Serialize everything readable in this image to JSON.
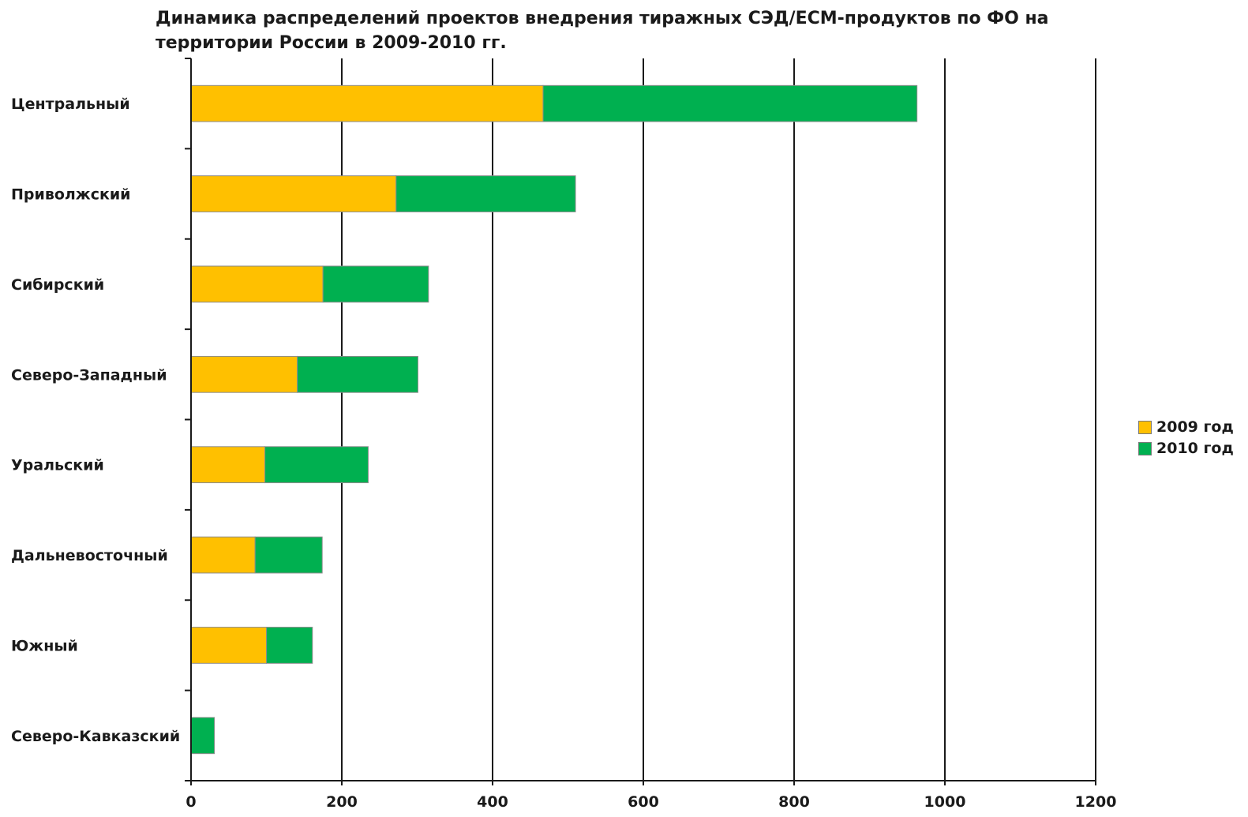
{
  "chart_data": {
    "type": "bar",
    "orientation": "horizontal",
    "stacked": true,
    "title": "Динамика распределений проектов внедрения тиражных СЭД/ECM-продуктов по ФО на\nтерритории России в 2009-2010 гг.",
    "xlabel": "",
    "ylabel": "",
    "categories": [
      "Центральный",
      "Приволжский",
      "Сибирский",
      "Северо-Западный",
      "Уральский",
      "Дальневосточный",
      "Южный",
      "Северо-Кавказский"
    ],
    "series": [
      {
        "name": "2009 год",
        "color": "#FFC000",
        "values": [
          467,
          272,
          175,
          141,
          98,
          85,
          100,
          0
        ]
      },
      {
        "name": "2010 год",
        "color": "#00B050",
        "values": [
          496,
          238,
          140,
          160,
          137,
          89,
          61,
          31
        ]
      }
    ],
    "xlim": [
      0,
      1200
    ],
    "xticks": [
      0,
      200,
      400,
      600,
      800,
      1000,
      1200
    ],
    "grid": "vertical",
    "legend_position": "right"
  }
}
